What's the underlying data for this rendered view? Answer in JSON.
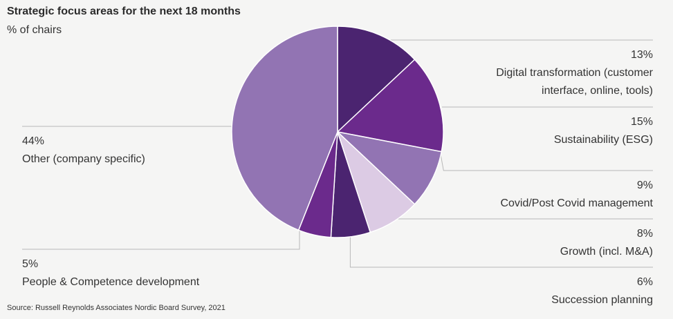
{
  "chart_data": {
    "type": "pie",
    "title": "Strategic focus areas for the next 18 months",
    "subtitle": "% of chairs",
    "source": "Source:  Russell Reynolds Associates Nordic Board Survey, 2021",
    "slices": [
      {
        "name": "Digital transformation (customer interface, online, tools)",
        "label_lines": [
          "Digital transformation (customer",
          "interface, online, tools)"
        ],
        "value": 13,
        "value_label": "13%",
        "color": "#4b2470"
      },
      {
        "name": "Sustainability (ESG)",
        "label_lines": [
          "Sustainability (ESG)"
        ],
        "value": 15,
        "value_label": "15%",
        "color": "#6b2a8c"
      },
      {
        "name": "Covid/Post Covid management",
        "label_lines": [
          "Covid/Post Covid management"
        ],
        "value": 9,
        "value_label": "9%",
        "color": "#9274b3"
      },
      {
        "name": "Growth (incl. M&A)",
        "label_lines": [
          "Growth (incl. M&A)"
        ],
        "value": 8,
        "value_label": "8%",
        "color": "#dccbe4"
      },
      {
        "name": "Succession planning",
        "label_lines": [
          "Succession planning"
        ],
        "value": 6,
        "value_label": "6%",
        "color": "#4b2470"
      },
      {
        "name": "People & Competence development",
        "label_lines": [
          "People & Competence development"
        ],
        "value": 5,
        "value_label": "5%",
        "color": "#6b2a8c"
      },
      {
        "name": "Other (company specific)",
        "label_lines": [
          "Other (company specific)"
        ],
        "value": 44,
        "value_label": "44%",
        "color": "#9274b3"
      }
    ]
  }
}
